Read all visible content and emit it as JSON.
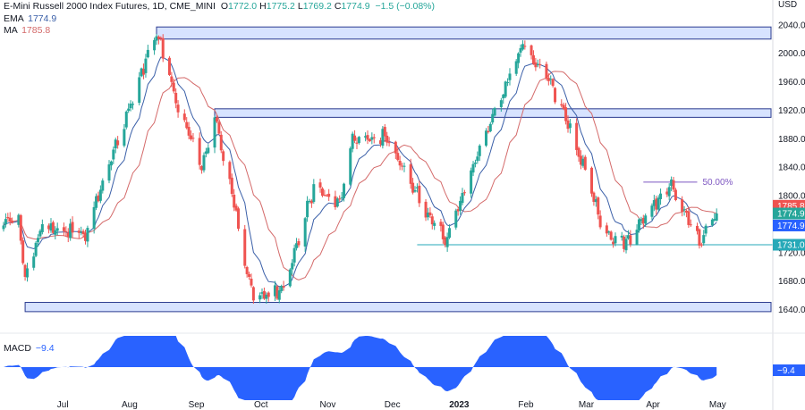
{
  "header": {
    "symbol": "E-Mini Russell 2000 Index Futures, 1D, CME_MINI",
    "ohlc": [
      {
        "key": "O",
        "value": "1772.0"
      },
      {
        "key": "H",
        "value": "1775.2"
      },
      {
        "key": "L",
        "value": "1769.2"
      },
      {
        "key": "C",
        "value": "1774.9"
      },
      {
        "key": "",
        "value": "−1.5 (−0.08%)"
      }
    ],
    "ema_label": "EMA",
    "ema_value": "1774.9",
    "ma_label": "MA",
    "ma_value": "1785.8"
  },
  "macd": {
    "label": "MACD",
    "value": "−9.4",
    "tag": "−9.4"
  },
  "axis": {
    "currency": "USD"
  },
  "colors": {
    "up": "#26a69a",
    "down": "#ef5350",
    "ema": "#3a5fa8",
    "ma": "#d46a6a",
    "zone_fill": "#d7e3ff",
    "zone_stroke": "#2a3b8f",
    "fib": "#7e57c2",
    "support_line": "#26a9b8",
    "macd": "#2962ff"
  },
  "chart_data": {
    "type": "candlestick",
    "ylim": [
      1620,
      2050
    ],
    "y_ticks": [
      2040,
      2000,
      1960,
      1920,
      1880,
      1840,
      1800,
      1760,
      1720,
      1680,
      1640
    ],
    "x_labels": [
      "Jul",
      "Aug",
      "Sep",
      "Oct",
      "Nov",
      "Dec",
      "2023",
      "Feb",
      "Mar",
      "Apr",
      "May"
    ],
    "x_label_bold": "2023",
    "anchors": [
      {
        "date": "2022-06-13",
        "close": 1765
      },
      {
        "date": "2022-06-16",
        "close": 1680
      },
      {
        "date": "2022-06-24",
        "close": 1760
      },
      {
        "date": "2022-07-14",
        "close": 1745
      },
      {
        "date": "2022-08-16",
        "close": 2035
      },
      {
        "date": "2022-08-26",
        "close": 1925
      },
      {
        "date": "2022-09-06",
        "close": 1840
      },
      {
        "date": "2022-09-12",
        "close": 1912
      },
      {
        "date": "2022-09-30",
        "close": 1655
      },
      {
        "date": "2022-10-13",
        "close": 1665
      },
      {
        "date": "2022-10-28",
        "close": 1810
      },
      {
        "date": "2022-11-09",
        "close": 1790
      },
      {
        "date": "2022-11-15",
        "close": 1880
      },
      {
        "date": "2022-12-01",
        "close": 1885
      },
      {
        "date": "2022-12-13",
        "close": 1810
      },
      {
        "date": "2022-12-28",
        "close": 1735
      },
      {
        "date": "2023-01-12",
        "close": 1860
      },
      {
        "date": "2023-02-02",
        "close": 2015
      },
      {
        "date": "2023-02-16",
        "close": 1950
      },
      {
        "date": "2023-02-24",
        "close": 1895
      },
      {
        "date": "2023-03-13",
        "close": 1740
      },
      {
        "date": "2023-03-23",
        "close": 1735
      },
      {
        "date": "2023-04-04",
        "close": 1790
      },
      {
        "date": "2023-04-12",
        "close": 1815
      },
      {
        "date": "2023-04-25",
        "close": 1735
      },
      {
        "date": "2023-05-03",
        "close": 1774.9
      }
    ],
    "zones": [
      {
        "name": "top-zone",
        "from": "2022-08-16",
        "low": 2020,
        "high": 2037
      },
      {
        "name": "mid-zone",
        "from": "2022-09-12",
        "low": 1910,
        "high": 1922
      },
      {
        "name": "bottom-zone",
        "from": "2022-06-16",
        "low": 1637,
        "high": 1650
      }
    ],
    "support_line": {
      "from": "2022-12-15",
      "value": 1731.0,
      "label": "1731.0"
    },
    "fib_line": {
      "from": "2023-03-30",
      "to": "2023-04-24",
      "value": 1819,
      "label": "50.00%"
    },
    "price_tags": [
      {
        "label": "1785.8",
        "value": 1785.8,
        "color": "#ef5350"
      },
      {
        "label": "1774.9",
        "value": 1774.9,
        "color": "#26a69a"
      },
      {
        "label": "1774.9",
        "value": 1758,
        "color": "#2962ff"
      },
      {
        "label": "1731.0",
        "value": 1731.0,
        "color": "#26a9b8"
      }
    ]
  }
}
